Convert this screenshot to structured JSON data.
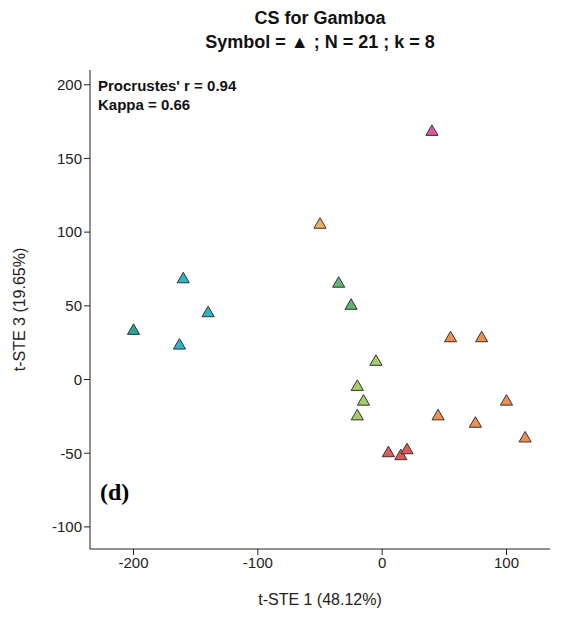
{
  "chart_data": {
    "type": "scatter",
    "title": "CS for Gamboa",
    "subtitle": "Symbol = ▲ ; N = 21 ; k = 8",
    "x_label": "t-STE 1 (48.12%)",
    "y_label": "t-STE 3 (19.65%)",
    "annotations": [
      "Procrustes' r = 0.94",
      "Kappa = 0.66"
    ],
    "panel_label": "(d)",
    "marker": "triangle",
    "xlim": [
      -235,
      135
    ],
    "ylim": [
      -115,
      210
    ],
    "xticks": [
      -200,
      -100,
      0,
      100
    ],
    "yticks": [
      -100,
      -50,
      0,
      50,
      100,
      150,
      200
    ],
    "series": [
      {
        "color": "#26a69a",
        "x": [
          -200
        ],
        "y": [
          33
        ]
      },
      {
        "color": "#2bb5c8",
        "x": [
          -160,
          -140,
          -163
        ],
        "y": [
          68,
          45,
          23
        ]
      },
      {
        "color": "#e0559b",
        "x": [
          40
        ],
        "y": [
          168
        ]
      },
      {
        "color": "#f0b060",
        "x": [
          -50
        ],
        "y": [
          105
        ]
      },
      {
        "color": "#5fb872",
        "x": [
          -35,
          -25
        ],
        "y": [
          65,
          50
        ]
      },
      {
        "color": "#a8cc6a",
        "x": [
          -5,
          -20,
          -15,
          -20
        ],
        "y": [
          12,
          -5,
          -15,
          -25
        ]
      },
      {
        "color": "#e05a5a",
        "x": [
          5,
          15,
          20
        ],
        "y": [
          -50,
          -52,
          -48
        ]
      },
      {
        "color": "#f09050",
        "x": [
          55,
          80,
          45,
          100,
          75,
          115
        ],
        "y": [
          28,
          28,
          -25,
          -15,
          -30,
          -40
        ]
      }
    ]
  }
}
